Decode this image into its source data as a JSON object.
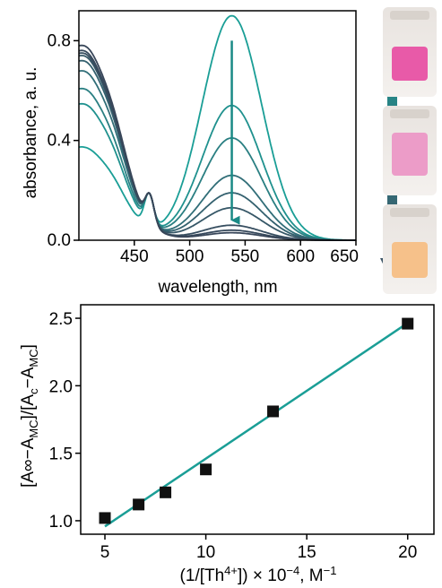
{
  "colors": {
    "teal": "#1a9e96",
    "dark": "#374a5c",
    "pink": "#e85aa8",
    "orange": "#f6c18a",
    "marker": "#111111"
  },
  "chart_data": [
    {
      "type": "line",
      "xlabel": "wavelength, nm",
      "ylabel": "absorbance, a. u.",
      "xlim": [
        400,
        650
      ],
      "ylim": [
        0,
        0.92
      ],
      "xticks": [
        450,
        500,
        550,
        600,
        650
      ],
      "xtick_labels": [
        "450",
        "500",
        "550",
        "600",
        "650"
      ],
      "yticks": [
        0.0,
        0.4,
        0.8
      ],
      "ytick_labels": [
        "0.0",
        "0.4",
        "0.8"
      ],
      "isosbestic_point": [
        463,
        0.19
      ],
      "arrow": {
        "from": [
          538,
          0.8
        ],
        "to": [
          538,
          0.08
        ]
      },
      "series": [
        {
          "peak": 0.9,
          "uv_at_400": 0.32,
          "color": "#1a9e96"
        },
        {
          "peak": 0.54,
          "uv_at_400": 0.49,
          "color": "#1f918e"
        },
        {
          "peak": 0.41,
          "uv_at_400": 0.55,
          "color": "#2a7f82"
        },
        {
          "peak": 0.26,
          "uv_at_400": 0.62,
          "color": "#316e78"
        },
        {
          "peak": 0.19,
          "uv_at_400": 0.66,
          "color": "#34616f"
        },
        {
          "peak": 0.13,
          "uv_at_400": 0.68,
          "color": "#365767"
        },
        {
          "peak": 0.06,
          "uv_at_400": 0.69,
          "color": "#374e60"
        },
        {
          "peak": 0.04,
          "uv_at_400": 0.7,
          "color": "#37495c"
        },
        {
          "peak": 0.03,
          "uv_at_400": 0.72,
          "color": "#384659"
        }
      ]
    },
    {
      "type": "scatter",
      "xlabel": "(1/[Th4+]) × 10−4, M−1",
      "ylabel": "[A∞−AMC]/[Ac−AMC]",
      "xlim": [
        3.8,
        21.3
      ],
      "ylim": [
        0.9,
        2.6
      ],
      "xticks": [
        5,
        10,
        15,
        20
      ],
      "xtick_labels": [
        "5",
        "10",
        "15",
        "20"
      ],
      "yticks": [
        1.0,
        1.5,
        2.0,
        2.5
      ],
      "ytick_labels": [
        "1.0",
        "1.5",
        "2.0",
        "2.5"
      ],
      "points": [
        {
          "x": 5.0,
          "y": 1.02
        },
        {
          "x": 6.67,
          "y": 1.12
        },
        {
          "x": 8.0,
          "y": 1.21
        },
        {
          "x": 10.0,
          "y": 1.38
        },
        {
          "x": 13.33,
          "y": 1.81
        },
        {
          "x": 20.0,
          "y": 2.46
        }
      ],
      "fit": {
        "slope": 0.1005,
        "intercept": 0.455,
        "x_range": [
          5.0,
          20.0
        ]
      }
    }
  ],
  "gradient_arrow": {
    "top_color": "#1a9e96",
    "bottom_color": "#3e5668"
  },
  "vials": [
    {
      "name": "pink-vial",
      "liquid": "#e85aa8"
    },
    {
      "name": "light-pink-vial",
      "liquid": "#ec9cc8"
    },
    {
      "name": "orange-vial",
      "liquid": "#f6c18a"
    }
  ]
}
